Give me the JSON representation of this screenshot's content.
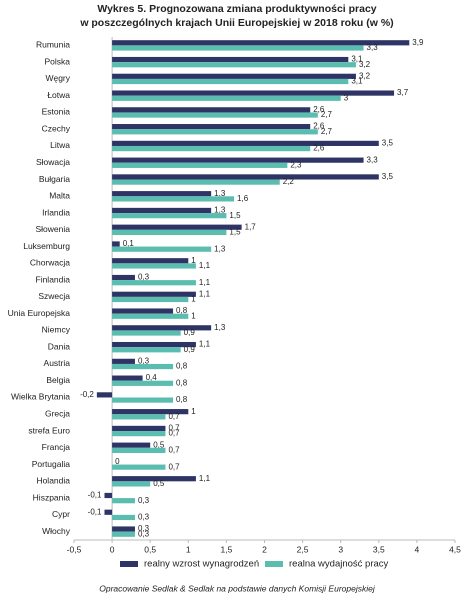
{
  "chart_data": {
    "type": "bar",
    "horizontal": true,
    "title": [
      "Wykres 5. Prognozowana zmiana produktywności pracy",
      "w poszczególnych krajach Unii Europejskiej w 2018 roku (w %)"
    ],
    "source": "Opracowanie Sedlak & Sedlak na podstawie danych Komisji Europejskiej",
    "categories": [
      "Rumunia",
      "Polska",
      "Węgry",
      "Łotwa",
      "Estonia",
      "Czechy",
      "Litwa",
      "Słowacja",
      "Bułgaria",
      "Malta",
      "Irlandia",
      "Słowenia",
      "Luksemburg",
      "Chorwacja",
      "Finlandia",
      "Szwecja",
      "Unia Europejska",
      "Niemcy",
      "Dania",
      "Austria",
      "Belgia",
      "Wielka Brytania",
      "Grecja",
      "strefa Euro",
      "Francja",
      "Portugalia",
      "Holandia",
      "Hiszpania",
      "Cypr",
      "Włochy"
    ],
    "series": [
      {
        "name": "realny wzrost wynagrodzeń",
        "color": "#2e3566",
        "values": [
          3.9,
          3.1,
          3.2,
          3.7,
          2.6,
          2.6,
          3.5,
          3.3,
          3.5,
          1.3,
          1.3,
          1.7,
          0.1,
          1,
          0.3,
          1.1,
          0.8,
          1.3,
          1.1,
          0.3,
          0.4,
          -0.2,
          1,
          0.7,
          0.5,
          0,
          1.1,
          -0.1,
          -0.1,
          0.3
        ],
        "value_labels": [
          "3,9",
          "3,1",
          "3,2",
          "3,7",
          "2,6",
          "2,6",
          "3,5",
          "3,3",
          "3,5",
          "1,3",
          "1,3",
          "1,7",
          "0,1",
          "1",
          "0,3",
          "1,1",
          "0,8",
          "1,3",
          "1,1",
          "0,3",
          "0,4",
          "-0,2",
          "1",
          "0,7",
          "0,5",
          "0",
          "1,1",
          "-0,1",
          "-0,1",
          "0,3"
        ]
      },
      {
        "name": "realna wydajność pracy",
        "color": "#5bbdb0",
        "values": [
          3.3,
          3.2,
          3.1,
          3,
          2.7,
          2.7,
          2.6,
          2.3,
          2.2,
          1.6,
          1.5,
          1.5,
          1.3,
          1.1,
          1.1,
          1,
          1,
          0.9,
          0.9,
          0.8,
          0.8,
          0.8,
          0.7,
          0.7,
          0.7,
          0.7,
          0.5,
          0.3,
          0.3,
          0.3
        ],
        "value_labels": [
          "3,3",
          "3,2",
          "3,1",
          "3",
          "2,7",
          "2,7",
          "2,6",
          "2,3",
          "2,2",
          "1,6",
          "1,5",
          "1,5",
          "1,3",
          "1,1",
          "1,1",
          "1",
          "1",
          "0,9",
          "0,9",
          "0,8",
          "0,8",
          "0,8",
          "0,7",
          "0,7",
          "0,7",
          "0,7",
          "0,5",
          "0,3",
          "0,3",
          "0,3"
        ]
      }
    ],
    "xlim": [
      -0.5,
      4.5
    ],
    "xticks": [
      {
        "value": -0.5,
        "label": "-0,5"
      },
      0,
      {
        "value": 0.5,
        "label": "0,5"
      },
      1,
      {
        "value": 1.5,
        "label": "1,5"
      },
      2,
      {
        "value": 2.5,
        "label": "2,5"
      },
      3,
      {
        "value": 3.5,
        "label": "3,5"
      },
      4,
      {
        "value": 4.5,
        "label": "4,5"
      }
    ],
    "legend": "bottom"
  }
}
